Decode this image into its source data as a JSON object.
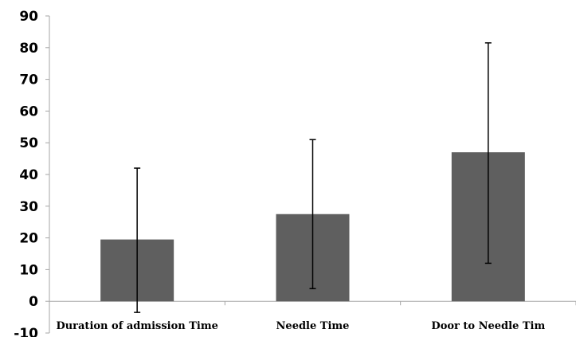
{
  "chart_data": {
    "type": "bar",
    "categories": [
      "Duration of admission Time",
      "Needle Time",
      "Door to Needle Tim"
    ],
    "values": [
      19.5,
      27.5,
      47
    ],
    "error_bars": [
      {
        "low": -3.5,
        "high": 42
      },
      {
        "low": 4,
        "high": 51
      },
      {
        "low": 12,
        "high": 81.5
      }
    ],
    "yticks": [
      -10,
      0,
      10,
      20,
      30,
      40,
      50,
      60,
      70,
      80,
      90
    ],
    "ylim": [
      -10,
      90
    ],
    "grid": false,
    "legend": "none",
    "colors": {
      "bar": "#5f5f5f",
      "axis": "#a6a6a6",
      "error_bar": "#000000"
    }
  }
}
